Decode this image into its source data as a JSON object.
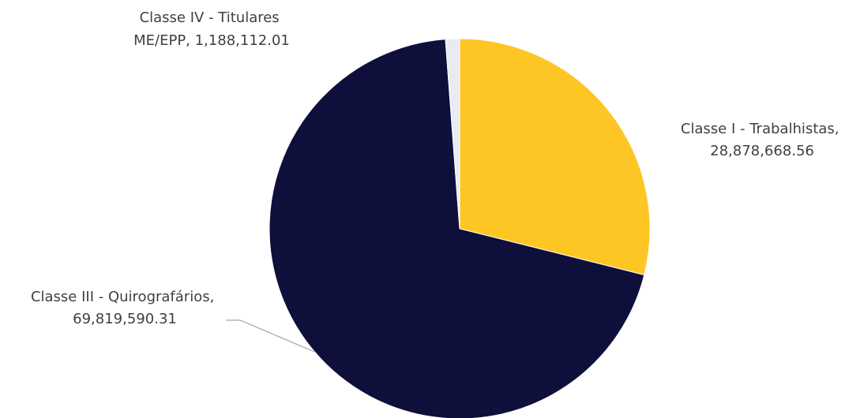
{
  "chart_data": {
    "type": "pie",
    "title": "",
    "slices": [
      {
        "name": "Classe I - Trabalhistas",
        "value": 28878668.56,
        "value_label": "28,878,668.56",
        "color": "#fdc624"
      },
      {
        "name": "Classe III - Quirografários",
        "value": 69819590.31,
        "value_label": "69,819,590.31",
        "color": "#0e0f3b"
      },
      {
        "name": "Classe IV - Titulares ME/EPP",
        "value": 1188112.01,
        "value_label": "1,188,112.01",
        "color": "#e8ebef"
      }
    ],
    "labels": [
      {
        "lines": [
          "Classe I - Trabalhistas,",
          "28,878,668.56"
        ]
      },
      {
        "lines": [
          "Classe III - Quirografários,",
          "69,819,590.31"
        ]
      },
      {
        "lines": [
          "Classe IV - Titulares",
          "ME/EPP,  1,188,112.01"
        ]
      }
    ]
  }
}
